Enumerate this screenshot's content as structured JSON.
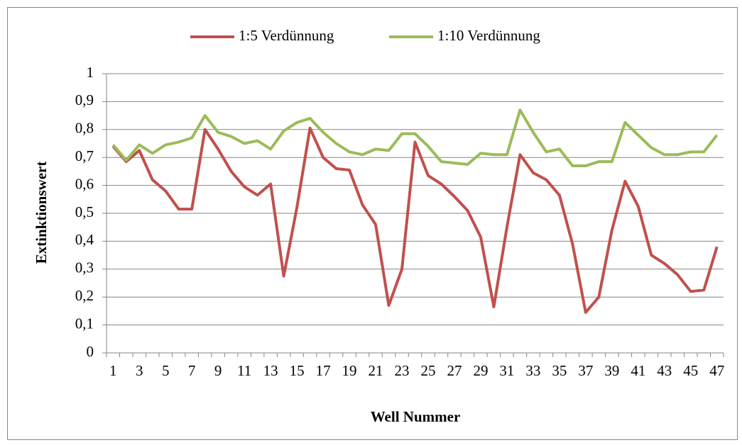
{
  "chart_data": {
    "type": "line",
    "y_label": "Extinktionswert",
    "x_label": "Well Nummer",
    "categories": [
      "1",
      null,
      "3",
      null,
      "5",
      null,
      "7",
      null,
      "9",
      null,
      "11",
      null,
      "13",
      null,
      "15",
      null,
      "17",
      null,
      "19",
      null,
      "21",
      null,
      "23",
      null,
      "25",
      null,
      "27",
      null,
      "29",
      null,
      "31",
      null,
      "33",
      null,
      "35",
      null,
      "37",
      null,
      "39",
      null,
      "41",
      null,
      "43",
      null,
      "45",
      null,
      "47"
    ],
    "series": [
      {
        "name": "1:5 Verdünnung",
        "color": "#c0504d",
        "values": [
          0.74,
          0.685,
          0.725,
          0.62,
          0.58,
          0.515,
          0.515,
          0.8,
          0.73,
          0.65,
          0.595,
          0.565,
          0.605,
          0.275,
          0.52,
          0.805,
          0.7,
          0.66,
          0.655,
          0.53,
          0.46,
          0.17,
          0.3,
          0.755,
          0.635,
          0.605,
          0.56,
          0.51,
          0.415,
          0.165,
          0.45,
          0.71,
          0.645,
          0.62,
          0.565,
          0.39,
          0.145,
          0.2,
          0.44,
          0.615,
          0.525,
          0.35,
          0.32,
          0.28,
          0.22,
          0.225,
          0.38
        ]
      },
      {
        "name": "1:10 Verdünnung",
        "color": "#9bbb59",
        "values": [
          0.745,
          0.69,
          0.745,
          0.715,
          0.745,
          0.755,
          0.77,
          0.85,
          0.79,
          0.775,
          0.75,
          0.76,
          0.73,
          0.795,
          0.825,
          0.84,
          0.79,
          0.75,
          0.72,
          0.71,
          0.73,
          0.725,
          0.785,
          0.785,
          0.74,
          0.685,
          0.68,
          0.675,
          0.715,
          0.71,
          0.71,
          0.87,
          0.79,
          0.72,
          0.73,
          0.67,
          0.67,
          0.685,
          0.685,
          0.825,
          0.78,
          0.735,
          0.71,
          0.71,
          0.72,
          0.72,
          0.78
        ]
      }
    ],
    "ylim": [
      0,
      1
    ],
    "yticks": [
      0,
      {
        "value": 0.1,
        "label": "0,1"
      },
      {
        "value": 0.2,
        "label": "0,2"
      },
      {
        "value": 0.3,
        "label": "0,3"
      },
      {
        "value": 0.4,
        "label": "0,4"
      },
      {
        "value": 0.5,
        "label": "0,5"
      },
      {
        "value": 0.6,
        "label": "0,6"
      },
      {
        "value": 0.7,
        "label": "0,7"
      },
      {
        "value": 0.8,
        "label": "0,8"
      },
      {
        "value": 0.9,
        "label": "0,9"
      },
      1
    ],
    "grid": true,
    "legend": "top"
  }
}
